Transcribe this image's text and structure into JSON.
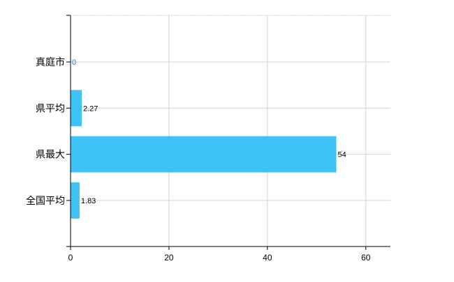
{
  "chart_data": {
    "type": "bar",
    "orientation": "horizontal",
    "categories": [
      "真庭市",
      "県平均",
      "県最大",
      "全国平均"
    ],
    "values": [
      0,
      2.27,
      54,
      1.83
    ],
    "data_labels": [
      "0",
      "2.27",
      "54",
      "1.83"
    ],
    "title": "",
    "xlabel": "",
    "ylabel": "",
    "xlim": [
      0,
      65
    ],
    "xticks": [
      0,
      20,
      40,
      60
    ],
    "grid": true,
    "bar_color": "#3ec1f5",
    "grid_color": "#d3d3d3"
  }
}
